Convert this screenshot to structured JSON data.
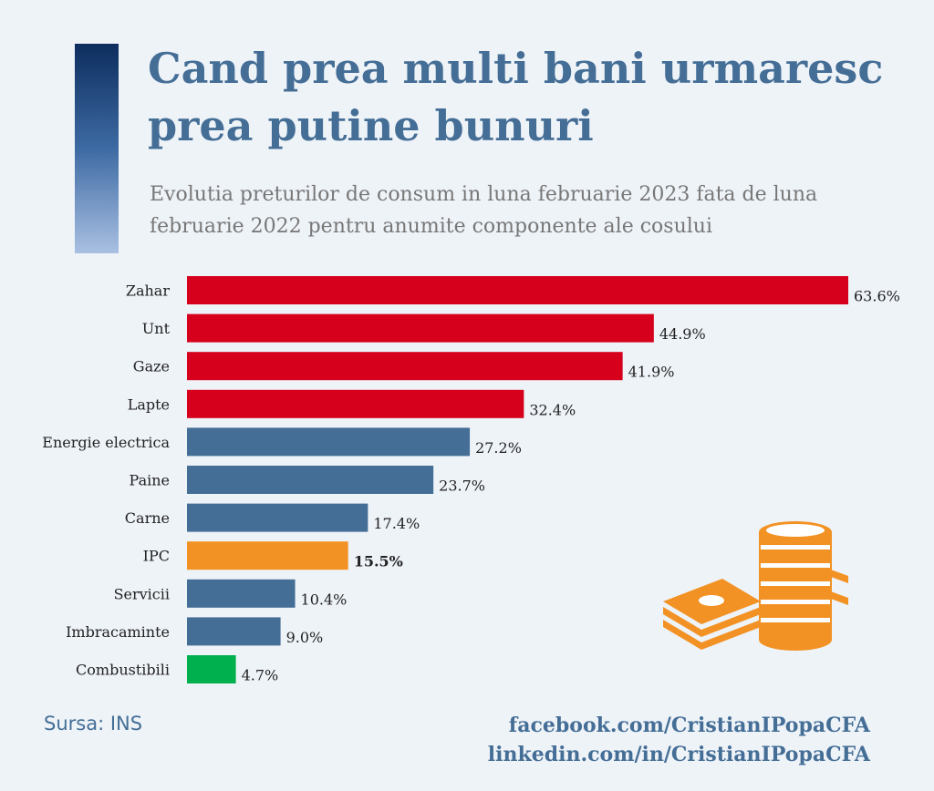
{
  "header": {
    "title_line1": "Cand prea multi bani urmaresc",
    "title_line2": "prea putine bunuri",
    "subtitle_line1": "Evolutia preturilor de consum in luna februarie 2023 fata de luna",
    "subtitle_line2": "februarie 2022 pentru anumite componente ale cosului"
  },
  "chart_data": {
    "type": "bar",
    "orientation": "horizontal",
    "categories": [
      "Zahar",
      "Unt",
      "Gaze",
      "Lapte",
      "Energie electrica",
      "Paine",
      "Carne",
      "IPC",
      "Servicii",
      "Imbracaminte",
      "Combustibili"
    ],
    "values": [
      63.6,
      44.9,
      41.9,
      32.4,
      27.2,
      23.7,
      17.4,
      15.5,
      10.4,
      9.0,
      4.7
    ],
    "value_labels": [
      "63.6%",
      "44.9%",
      "41.9%",
      "32.4%",
      "27.2%",
      "23.7%",
      "17.4%",
      "15.5%",
      "10.4%",
      "9.0%",
      "4.7%"
    ],
    "bar_colors": [
      "#d6001c",
      "#d6001c",
      "#d6001c",
      "#d6001c",
      "#456e96",
      "#456e96",
      "#456e96",
      "#f39224",
      "#456e96",
      "#456e96",
      "#00b04f"
    ],
    "bold_labels": [
      "IPC"
    ],
    "xlim": [
      0,
      63.6
    ],
    "grid": false,
    "legend": "none"
  },
  "footer": {
    "source": "Sursa: INS",
    "link1": "facebook.com/CristianIPopaCFA",
    "link2": "linkedin.com/in/CristianIPopaCFA"
  },
  "icon": "coins-and-banknotes-icon"
}
